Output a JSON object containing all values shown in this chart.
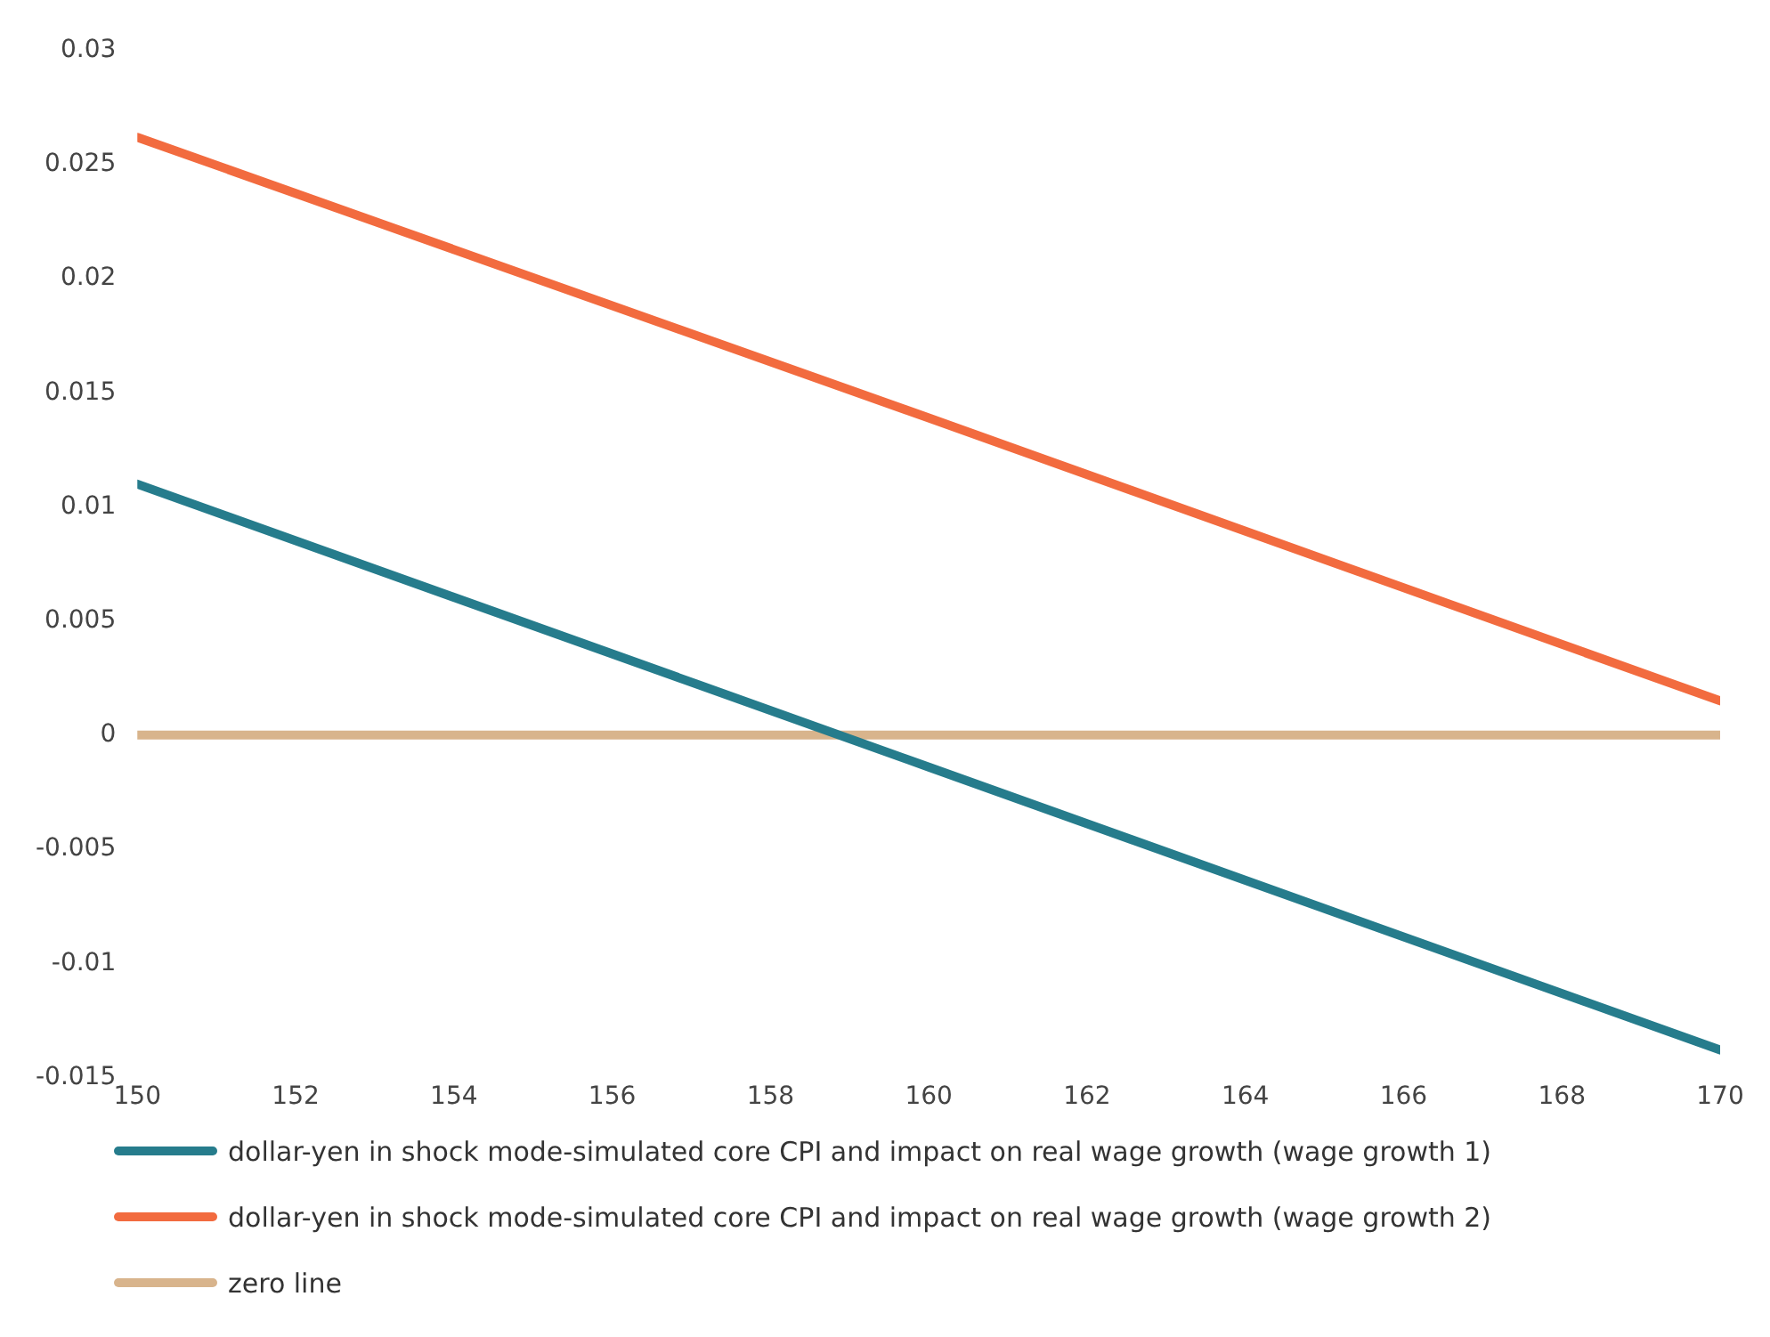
{
  "chart_data": {
    "type": "line",
    "x": [
      150,
      160,
      170
    ],
    "series": [
      {
        "name": "dollar-yen in shock mode-simulated core CPI and impact on real wage growth (wage growth 1)",
        "color": "#267c8c",
        "values": [
          0.011,
          -0.0014,
          -0.0138
        ]
      },
      {
        "name": "dollar-yen in shock mode-simulated core CPI and impact on real wage growth (wage growth 2)",
        "color": "#f26b3f",
        "values": [
          0.0262,
          0.0139,
          0.0015
        ]
      },
      {
        "name": "zero line",
        "color": "#d8b48c",
        "values": [
          0,
          0,
          0
        ]
      }
    ],
    "xlim": [
      150,
      170
    ],
    "xticks": [
      150,
      152,
      154,
      156,
      158,
      160,
      162,
      164,
      166,
      168,
      170
    ],
    "ylim": [
      -0.015,
      0.03
    ],
    "yticks": [
      -0.015,
      -0.01,
      -0.005,
      0,
      0.005,
      0.01,
      0.015,
      0.02,
      0.025,
      0.03
    ],
    "grid": false,
    "legend": "bottom",
    "marker": "none",
    "line_style": "solid"
  }
}
